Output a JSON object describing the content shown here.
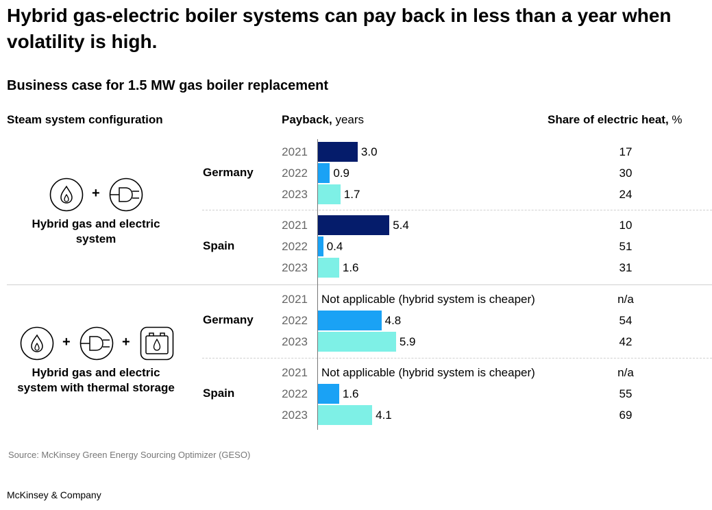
{
  "title": "Hybrid gas-electric boiler systems can pay back in less than a year when volatility is high.",
  "subtitle": "Business case for 1.5 MW gas boiler replacement",
  "headers": {
    "config": "Steam system configuration",
    "payback_bold": "Payback,",
    "payback_unit": " years",
    "share_bold": "Share of electric heat,",
    "share_unit": " %"
  },
  "plus": "+",
  "configs": [
    {
      "label_line1": "Hybrid gas and electric",
      "label_line2": "system"
    },
    {
      "label_line1": "Hybrid gas and electric",
      "label_line2": "system with thermal storage"
    }
  ],
  "colors": {
    "2021": "#051c6b",
    "2022": "#1aa2f5",
    "2023": "#7ef0e6"
  },
  "chart_data": {
    "type": "bar",
    "orientation": "horizontal",
    "title": "Business case for 1.5 MW gas boiler replacement",
    "xlabel": "Payback, years",
    "xlim": [
      0,
      6
    ],
    "groups": [
      {
        "config": "Hybrid gas and electric system",
        "country": "Germany",
        "rows": [
          {
            "year": "2021",
            "payback": 3.0,
            "payback_label": "3.0",
            "share": "17"
          },
          {
            "year": "2022",
            "payback": 0.9,
            "payback_label": "0.9",
            "share": "30"
          },
          {
            "year": "2023",
            "payback": 1.7,
            "payback_label": "1.7",
            "share": "24"
          }
        ]
      },
      {
        "config": "Hybrid gas and electric system",
        "country": "Spain",
        "rows": [
          {
            "year": "2021",
            "payback": 5.4,
            "payback_label": "5.4",
            "share": "10"
          },
          {
            "year": "2022",
            "payback": 0.4,
            "payback_label": "0.4",
            "share": "51"
          },
          {
            "year": "2023",
            "payback": 1.6,
            "payback_label": "1.6",
            "share": "31"
          }
        ]
      },
      {
        "config": "Hybrid gas and electric system with thermal storage",
        "country": "Germany",
        "rows": [
          {
            "year": "2021",
            "payback": null,
            "payback_label": "Not applicable (hybrid system is cheaper)",
            "share": "n/a"
          },
          {
            "year": "2022",
            "payback": 4.8,
            "payback_label": "4.8",
            "share": "54"
          },
          {
            "year": "2023",
            "payback": 5.9,
            "payback_label": "5.9",
            "share": "42"
          }
        ]
      },
      {
        "config": "Hybrid gas and electric system with thermal storage",
        "country": "Spain",
        "rows": [
          {
            "year": "2021",
            "payback": null,
            "payback_label": "Not applicable (hybrid system is cheaper)",
            "share": "n/a"
          },
          {
            "year": "2022",
            "payback": 1.6,
            "payback_label": "1.6",
            "share": "55"
          },
          {
            "year": "2023",
            "payback": 4.1,
            "payback_label": "4.1",
            "share": "69"
          }
        ]
      }
    ]
  },
  "icons": [
    "flame-icon",
    "plug-icon",
    "thermal-storage-icon"
  ],
  "source": "Source: McKinsey Green Energy Sourcing Optimizer (GESO)",
  "brand": "McKinsey & Company"
}
